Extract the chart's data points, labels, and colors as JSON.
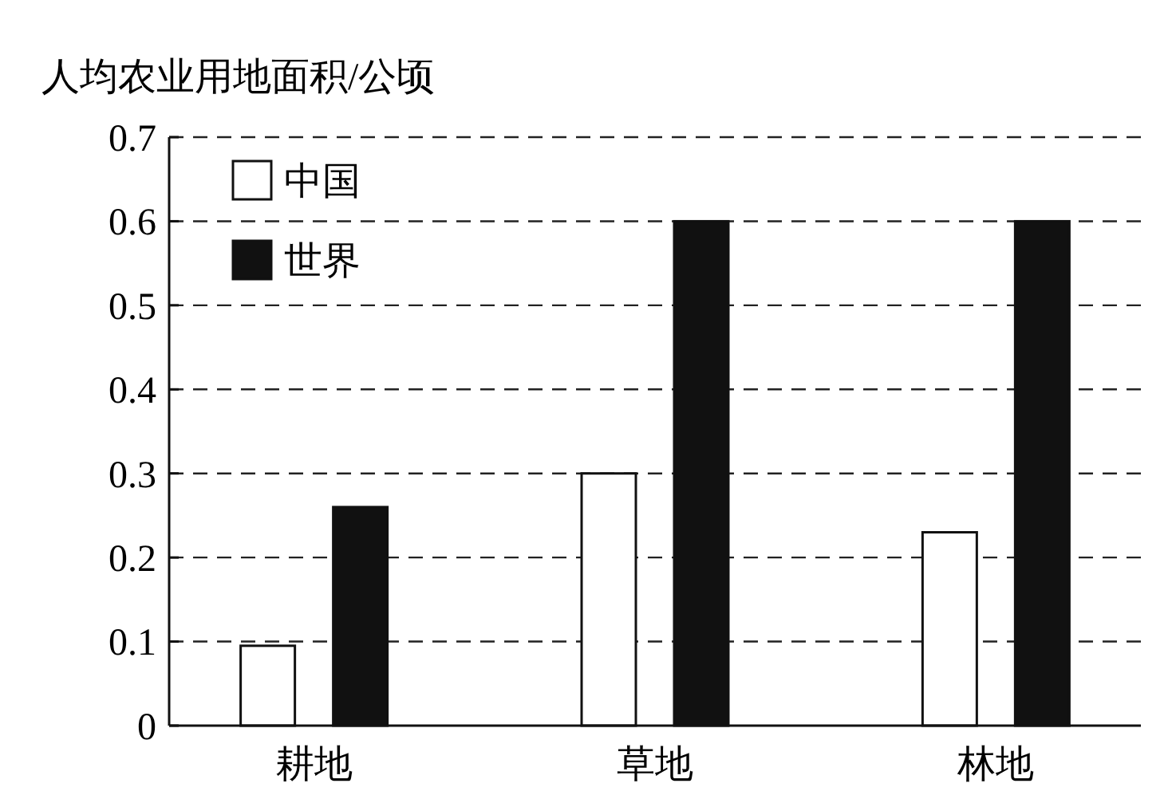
{
  "chart_data": {
    "type": "bar",
    "ylabel": "人均农业用地面积/公顷",
    "categories": [
      "耕地",
      "草地",
      "林地"
    ],
    "series": [
      {
        "name": "中国",
        "color": "#ffffff",
        "values": [
          0.095,
          0.3,
          0.23
        ]
      },
      {
        "name": "世界",
        "color": "#111111",
        "values": [
          0.26,
          0.6,
          0.6
        ]
      }
    ],
    "ylim": [
      0,
      0.7
    ],
    "yticks": [
      0,
      0.1,
      0.2,
      0.3,
      0.4,
      0.5,
      0.6,
      0.7
    ],
    "grid": "y",
    "legend": "top left"
  }
}
